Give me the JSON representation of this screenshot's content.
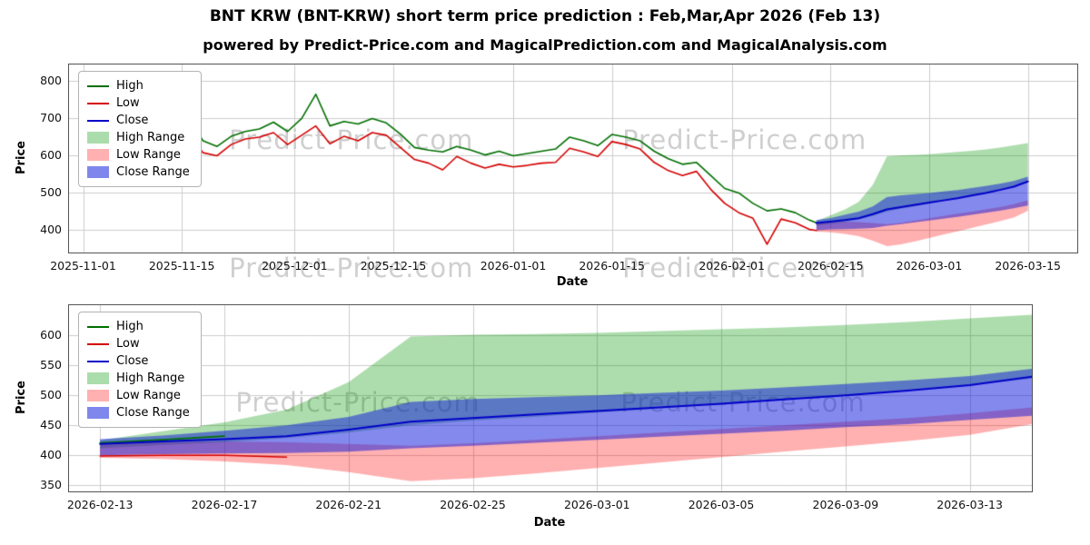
{
  "title": "BNT KRW (BNT-KRW) short term price prediction : Feb,Mar,Apr 2026 (Feb 13)",
  "subtitle": "powered by Predict-Price.com and MagicalPrediction.com and MagicalAnalysis.com",
  "colors": {
    "high_line": "#006f00",
    "low_line": "#d40000",
    "close_line": "#0000c8",
    "high_band": "rgba(0,150,0,0.32)",
    "low_band": "rgba(255,0,0,0.31)",
    "close_band": "rgba(10,20,220,0.50)",
    "high_band_legend": "#abdcab",
    "low_band_legend": "#ffb1b1",
    "close_band_legend": "#8087ec",
    "grid": "#cccccc",
    "watermark": "rgba(140,140,140,0.42)"
  },
  "legend": {
    "items": [
      {
        "label": "High",
        "kind": "line",
        "color": "#006f00"
      },
      {
        "label": "Low",
        "kind": "line",
        "color": "#d40000"
      },
      {
        "label": "Close",
        "kind": "line",
        "color": "#0000c8"
      },
      {
        "label": "High Range",
        "kind": "patch",
        "color": "#abdcab"
      },
      {
        "label": "Low Range",
        "kind": "patch",
        "color": "#ffb1b1"
      },
      {
        "label": "Close Range",
        "kind": "patch",
        "color": "#8087ec"
      }
    ]
  },
  "prediction": {
    "dates": [
      "2026-02-13",
      "2026-02-15",
      "2026-02-17",
      "2026-02-19",
      "2026-02-21",
      "2026-02-23",
      "2026-02-25",
      "2026-02-27",
      "2026-03-01",
      "2026-03-03",
      "2026-03-05",
      "2026-03-07",
      "2026-03-09",
      "2026-03-11",
      "2026-03-13",
      "2026-03-15"
    ],
    "close": [
      419,
      423,
      427,
      432,
      443,
      456,
      462,
      468,
      474,
      480,
      486,
      493,
      500,
      508,
      517,
      531
    ],
    "high_range_upper": [
      425,
      440,
      455,
      476,
      522,
      598,
      601,
      602,
      604,
      607,
      610,
      613,
      617,
      622,
      628,
      634
    ],
    "high_range_lower": [
      412,
      417,
      422,
      429,
      438,
      450,
      458,
      464,
      471,
      478,
      485,
      492,
      500,
      508,
      517,
      528
    ],
    "close_range_upper": [
      427,
      433,
      441,
      450,
      464,
      489,
      494,
      497,
      500,
      504,
      508,
      513,
      519,
      525,
      532,
      544
    ],
    "close_range_lower": [
      400,
      402,
      403,
      404,
      406,
      412,
      416,
      421,
      426,
      431,
      436,
      441,
      447,
      452,
      459,
      466
    ],
    "low_range_upper": [
      421,
      422,
      423,
      422,
      419,
      416,
      420,
      426,
      432,
      438,
      444,
      450,
      456,
      462,
      470,
      480
    ],
    "low_range_lower": [
      396,
      394,
      390,
      384,
      372,
      357,
      362,
      370,
      379,
      388,
      397,
      406,
      415,
      424,
      434,
      452
    ],
    "high_partial": {
      "dates": [
        "2026-02-13",
        "2026-02-15",
        "2026-02-17"
      ],
      "values": [
        421,
        426,
        432
      ]
    },
    "low_partial": {
      "dates": [
        "2026-02-13",
        "2026-02-15",
        "2026-02-17",
        "2026-02-19"
      ],
      "values": [
        399,
        400,
        400,
        397
      ]
    }
  },
  "chart_data": [
    {
      "type": "line",
      "xlabel": "Date",
      "ylabel": "Price",
      "xlim": [
        "2025-10-30",
        "2026-03-22"
      ],
      "ylim": [
        340,
        845
      ],
      "x_ticks": [
        "2025-11-01",
        "2025-11-15",
        "2025-12-01",
        "2025-12-15",
        "2026-01-01",
        "2026-01-15",
        "2026-02-01",
        "2026-02-15",
        "2026-03-01",
        "2026-03-15"
      ],
      "y_ticks": [
        400,
        500,
        600,
        700,
        800
      ],
      "grid": true,
      "legend_position": "upper left",
      "watermarks": [
        {
          "text": "Predict-Price.com",
          "x": 0.28,
          "y": 0.4
        },
        {
          "text": "Predict-Price.com",
          "x": 0.67,
          "y": 0.4
        },
        {
          "text": "Predict-Price.com",
          "x": 0.28,
          "y": 1.08
        },
        {
          "text": "Predict-Price.com",
          "x": 0.67,
          "y": 1.08
        }
      ],
      "history": {
        "dates": [
          "2025-11-04",
          "2025-11-06",
          "2025-11-08",
          "2025-11-10",
          "2025-11-12",
          "2025-11-14",
          "2025-11-16",
          "2025-11-18",
          "2025-11-20",
          "2025-11-22",
          "2025-11-24",
          "2025-11-26",
          "2025-11-28",
          "2025-11-30",
          "2025-12-02",
          "2025-12-04",
          "2025-12-06",
          "2025-12-08",
          "2025-12-10",
          "2025-12-12",
          "2025-12-14",
          "2025-12-16",
          "2025-12-18",
          "2025-12-20",
          "2025-12-22",
          "2025-12-24",
          "2025-12-26",
          "2025-12-28",
          "2025-12-30",
          "2026-01-01",
          "2026-01-03",
          "2026-01-05",
          "2026-01-07",
          "2026-01-09",
          "2026-01-11",
          "2026-01-13",
          "2026-01-15",
          "2026-01-17",
          "2026-01-19",
          "2026-01-21",
          "2026-01-23",
          "2026-01-25",
          "2026-01-27",
          "2026-01-29",
          "2026-01-31",
          "2026-02-02",
          "2026-02-04",
          "2026-02-06",
          "2026-02-08",
          "2026-02-10",
          "2026-02-12",
          "2026-02-13"
        ],
        "high": [
          790,
          810,
          820,
          750,
          705,
          712,
          700,
          640,
          625,
          652,
          665,
          672,
          690,
          665,
          700,
          765,
          680,
          692,
          685,
          700,
          688,
          658,
          622,
          615,
          610,
          625,
          615,
          602,
          612,
          600,
          606,
          612,
          618,
          650,
          640,
          627,
          657,
          650,
          640,
          612,
          592,
          577,
          582,
          547,
          512,
          500,
          472,
          452,
          457,
          447,
          427,
          420
        ],
        "low": [
          755,
          700,
          710,
          688,
          660,
          680,
          658,
          608,
          600,
          630,
          645,
          650,
          662,
          630,
          655,
          680,
          632,
          652,
          640,
          662,
          655,
          622,
          590,
          580,
          562,
          598,
          580,
          567,
          577,
          570,
          574,
          580,
          582,
          620,
          610,
          598,
          638,
          630,
          618,
          582,
          560,
          547,
          558,
          510,
          472,
          447,
          432,
          362,
          430,
          420,
          402,
          399
        ]
      }
    },
    {
      "type": "line",
      "xlabel": "Date",
      "ylabel": "Price",
      "xlim": [
        "2026-02-12",
        "2026-03-15"
      ],
      "ylim": [
        340,
        650
      ],
      "x_ticks": [
        "2026-02-13",
        "2026-02-17",
        "2026-02-21",
        "2026-02-25",
        "2026-03-01",
        "2026-03-05",
        "2026-03-09",
        "2026-03-13"
      ],
      "y_ticks": [
        350,
        400,
        450,
        500,
        550,
        600
      ],
      "grid": true,
      "legend_position": "upper left",
      "watermarks": [
        {
          "text": "Predict-Price.com",
          "x": 0.3,
          "y": 0.52
        },
        {
          "text": "Predict-Price.com",
          "x": 0.7,
          "y": 0.52
        }
      ]
    }
  ]
}
